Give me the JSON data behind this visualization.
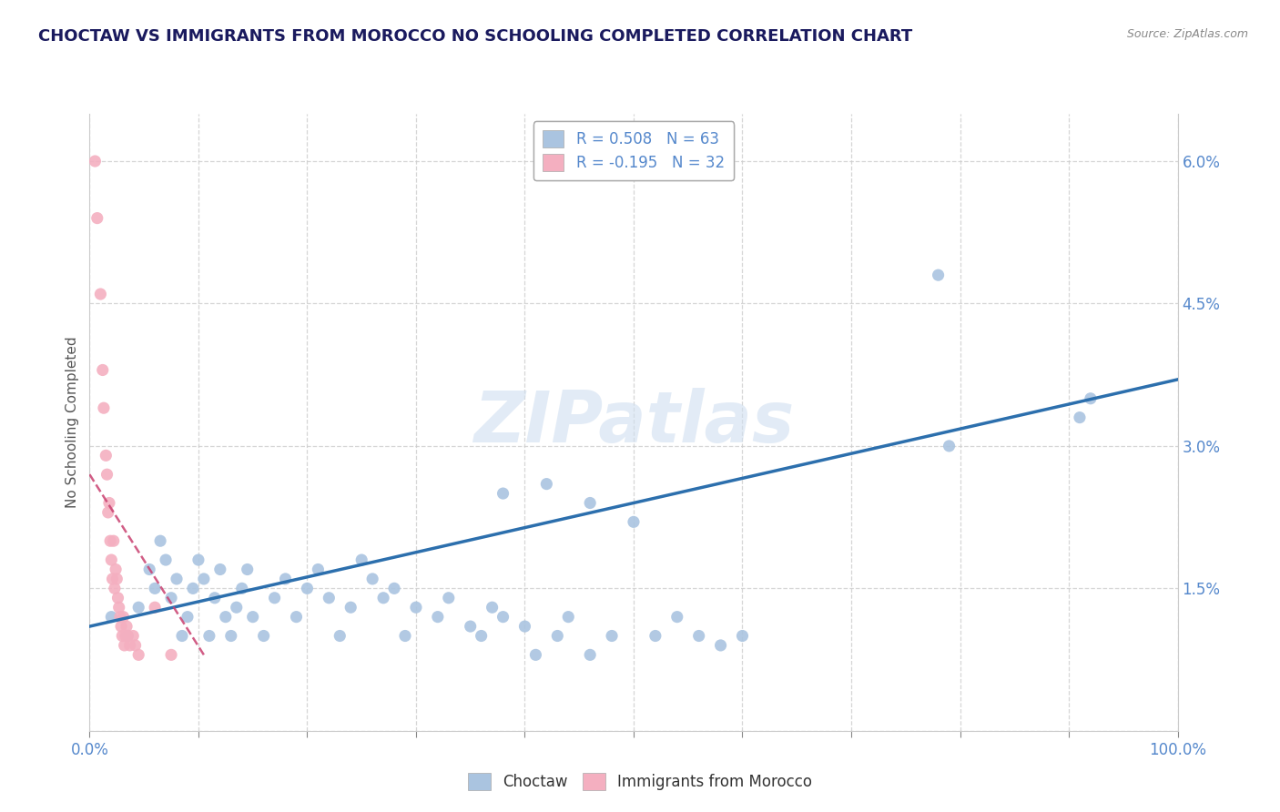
{
  "title": "CHOCTAW VS IMMIGRANTS FROM MOROCCO NO SCHOOLING COMPLETED CORRELATION CHART",
  "source": "Source: ZipAtlas.com",
  "ylabel": "No Schooling Completed",
  "xlim": [
    0,
    1.0
  ],
  "ylim": [
    0,
    0.065
  ],
  "background_color": "#ffffff",
  "watermark": "ZIPatlas",
  "legend_r1": "R = 0.508",
  "legend_n1": "N = 63",
  "legend_r2": "R = -0.195",
  "legend_n2": "N = 32",
  "blue_color": "#aac4e0",
  "pink_color": "#f4afc0",
  "blue_line_color": "#2c6fad",
  "pink_line_color": "#c94070",
  "title_color": "#1a1a5e",
  "ytick_color": "#5588cc",
  "xtick_color": "#5588cc",
  "choctaw_x": [
    0.02,
    0.035,
    0.045,
    0.055,
    0.06,
    0.065,
    0.07,
    0.075,
    0.08,
    0.085,
    0.09,
    0.095,
    0.1,
    0.105,
    0.11,
    0.115,
    0.12,
    0.125,
    0.13,
    0.135,
    0.14,
    0.145,
    0.15,
    0.16,
    0.17,
    0.18,
    0.19,
    0.2,
    0.21,
    0.22,
    0.23,
    0.24,
    0.25,
    0.26,
    0.27,
    0.28,
    0.29,
    0.3,
    0.32,
    0.33,
    0.35,
    0.36,
    0.37,
    0.38,
    0.4,
    0.41,
    0.43,
    0.44,
    0.46,
    0.48,
    0.5,
    0.52,
    0.54,
    0.56,
    0.58,
    0.6,
    0.38,
    0.42,
    0.46,
    0.78,
    0.79,
    0.91,
    0.92
  ],
  "choctaw_y": [
    0.012,
    0.01,
    0.013,
    0.017,
    0.015,
    0.02,
    0.018,
    0.014,
    0.016,
    0.01,
    0.012,
    0.015,
    0.018,
    0.016,
    0.01,
    0.014,
    0.017,
    0.012,
    0.01,
    0.013,
    0.015,
    0.017,
    0.012,
    0.01,
    0.014,
    0.016,
    0.012,
    0.015,
    0.017,
    0.014,
    0.01,
    0.013,
    0.018,
    0.016,
    0.014,
    0.015,
    0.01,
    0.013,
    0.012,
    0.014,
    0.011,
    0.01,
    0.013,
    0.012,
    0.011,
    0.008,
    0.01,
    0.012,
    0.008,
    0.01,
    0.022,
    0.01,
    0.012,
    0.01,
    0.009,
    0.01,
    0.025,
    0.026,
    0.024,
    0.048,
    0.03,
    0.033,
    0.035
  ],
  "morocco_x": [
    0.005,
    0.007,
    0.01,
    0.012,
    0.013,
    0.015,
    0.016,
    0.017,
    0.018,
    0.019,
    0.02,
    0.021,
    0.022,
    0.023,
    0.024,
    0.025,
    0.026,
    0.027,
    0.028,
    0.029,
    0.03,
    0.031,
    0.032,
    0.033,
    0.034,
    0.035,
    0.037,
    0.04,
    0.042,
    0.045,
    0.06,
    0.075
  ],
  "morocco_y": [
    0.06,
    0.054,
    0.046,
    0.038,
    0.034,
    0.029,
    0.027,
    0.023,
    0.024,
    0.02,
    0.018,
    0.016,
    0.02,
    0.015,
    0.017,
    0.016,
    0.014,
    0.013,
    0.012,
    0.011,
    0.01,
    0.012,
    0.009,
    0.01,
    0.011,
    0.01,
    0.009,
    0.01,
    0.009,
    0.008,
    0.013,
    0.008
  ],
  "blue_line_x0": 0.0,
  "blue_line_x1": 1.0,
  "blue_line_y0": 0.011,
  "blue_line_y1": 0.037,
  "pink_line_x0": 0.0,
  "pink_line_x1": 0.105,
  "pink_line_y0": 0.027,
  "pink_line_y1": 0.008
}
